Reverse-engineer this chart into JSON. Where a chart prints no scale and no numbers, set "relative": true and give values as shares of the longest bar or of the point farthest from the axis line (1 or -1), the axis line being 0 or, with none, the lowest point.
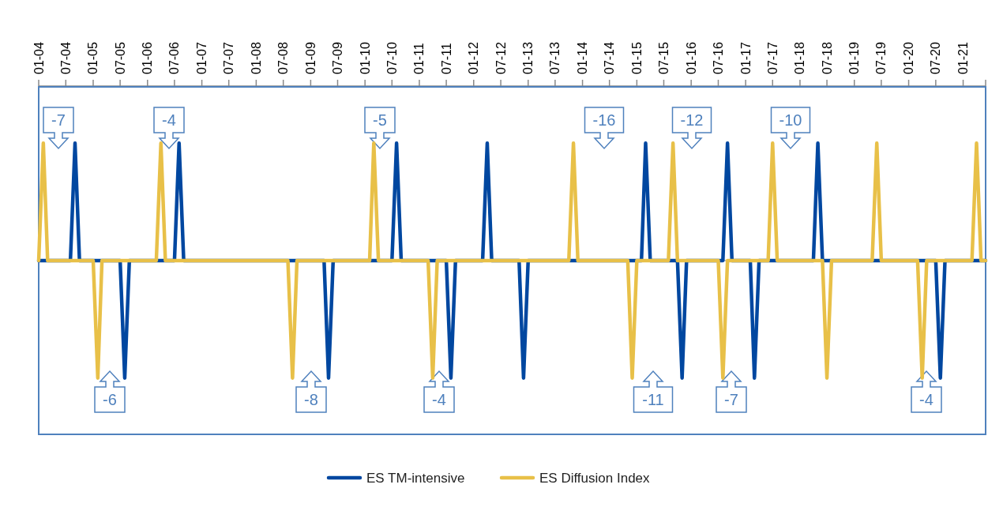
{
  "chart_data": {
    "type": "line",
    "relative": true,
    "xlim": [
      "2004-01",
      "2021-06"
    ],
    "xticks": [
      {
        "value": "2004-01",
        "label": "01-04"
      },
      {
        "value": "2004-07",
        "label": "07-04"
      },
      {
        "value": "2005-01",
        "label": "01-05"
      },
      {
        "value": "2005-07",
        "label": "07-05"
      },
      {
        "value": "2006-01",
        "label": "01-06"
      },
      {
        "value": "2006-07",
        "label": "07-06"
      },
      {
        "value": "2007-01",
        "label": "01-07"
      },
      {
        "value": "2007-07",
        "label": "07-07"
      },
      {
        "value": "2008-01",
        "label": "01-08"
      },
      {
        "value": "2008-07",
        "label": "07-08"
      },
      {
        "value": "2009-01",
        "label": "01-09"
      },
      {
        "value": "2009-07",
        "label": "07-09"
      },
      {
        "value": "2010-01",
        "label": "01-10"
      },
      {
        "value": "2010-07",
        "label": "07-10"
      },
      {
        "value": "2011-01",
        "label": "01-11"
      },
      {
        "value": "2011-07",
        "label": "07-11"
      },
      {
        "value": "2012-01",
        "label": "01-12"
      },
      {
        "value": "2012-07",
        "label": "07-12"
      },
      {
        "value": "2013-01",
        "label": "01-13"
      },
      {
        "value": "2013-07",
        "label": "07-13"
      },
      {
        "value": "2014-01",
        "label": "01-14"
      },
      {
        "value": "2014-07",
        "label": "07-14"
      },
      {
        "value": "2015-01",
        "label": "01-15"
      },
      {
        "value": "2015-07",
        "label": "07-15"
      },
      {
        "value": "2016-01",
        "label": "01-16"
      },
      {
        "value": "2016-07",
        "label": "07-16"
      },
      {
        "value": "2017-01",
        "label": "01-17"
      },
      {
        "value": "2017-07",
        "label": "07-17"
      },
      {
        "value": "2018-01",
        "label": "01-18"
      },
      {
        "value": "2018-07",
        "label": "07-18"
      },
      {
        "value": "2019-01",
        "label": "01-19"
      },
      {
        "value": "2019-07",
        "label": "07-19"
      },
      {
        "value": "2020-01",
        "label": "01-20"
      },
      {
        "value": "2020-07",
        "label": "07-20"
      },
      {
        "value": "2021-01",
        "label": "01-21"
      }
    ],
    "series": [
      {
        "name": "ES TM-intensive",
        "color": "#0047a0",
        "x": [
          "2004-01",
          "2004-08",
          "2004-09",
          "2004-10",
          "2005-07",
          "2005-08",
          "2005-09",
          "2006-07",
          "2006-08",
          "2006-09",
          "2009-04",
          "2009-05",
          "2009-06",
          "2010-07",
          "2010-08",
          "2010-09",
          "2011-07",
          "2011-08",
          "2011-09",
          "2012-03",
          "2012-04",
          "2012-05",
          "2012-11",
          "2012-12",
          "2013-01",
          "2015-02",
          "2015-03",
          "2015-04",
          "2015-10",
          "2015-11",
          "2015-12",
          "2016-08",
          "2016-09",
          "2016-10",
          "2017-02",
          "2017-03",
          "2017-04",
          "2018-04",
          "2018-05",
          "2018-06",
          "2020-07",
          "2020-08",
          "2020-09",
          "2021-06"
        ],
        "values": [
          0,
          0,
          1,
          0,
          0,
          -1,
          0,
          0,
          1,
          0,
          0,
          -1,
          0,
          0,
          1,
          0,
          0,
          -1,
          0,
          0,
          1,
          0,
          0,
          -1,
          0,
          0,
          1,
          0,
          0,
          -1,
          0,
          0,
          1,
          0,
          0,
          -1,
          0,
          0,
          1,
          0,
          0,
          -1,
          0,
          0
        ]
      },
      {
        "name": "ES Diffusion Index",
        "color": "#e8c048",
        "x": [
          "2004-01",
          "2004-02",
          "2004-03",
          "2005-01",
          "2005-02",
          "2005-03",
          "2006-03",
          "2006-04",
          "2006-05",
          "2008-08",
          "2008-09",
          "2008-10",
          "2010-02",
          "2010-03",
          "2010-04",
          "2011-03",
          "2011-04",
          "2011-05",
          "2013-10",
          "2013-11",
          "2013-12",
          "2014-11",
          "2014-12",
          "2015-01",
          "2015-08",
          "2015-09",
          "2015-10",
          "2016-07",
          "2016-08",
          "2016-09",
          "2017-06",
          "2017-07",
          "2017-08",
          "2018-06",
          "2018-07",
          "2018-08",
          "2019-05",
          "2019-06",
          "2019-07",
          "2020-03",
          "2020-04",
          "2020-05",
          "2021-03",
          "2021-04",
          "2021-05",
          "2021-06"
        ],
        "values": [
          0,
          1,
          0,
          0,
          -1,
          0,
          0,
          1,
          0,
          0,
          -1,
          0,
          0,
          1,
          0,
          0,
          -1,
          0,
          0,
          1,
          0,
          0,
          -1,
          0,
          0,
          1,
          0,
          0,
          -1,
          0,
          0,
          1,
          0,
          0,
          -1,
          0,
          0,
          1,
          0,
          0,
          -1,
          0,
          0,
          1,
          0,
          0
        ]
      }
    ],
    "annotations": [
      "-7",
      "-6",
      "-4",
      "-8",
      "-5",
      "-4",
      "-16",
      "-11",
      "-12",
      "-7",
      "-10",
      "-4"
    ],
    "legend": "bottom",
    "marker": "none",
    "line_style": "solid"
  }
}
